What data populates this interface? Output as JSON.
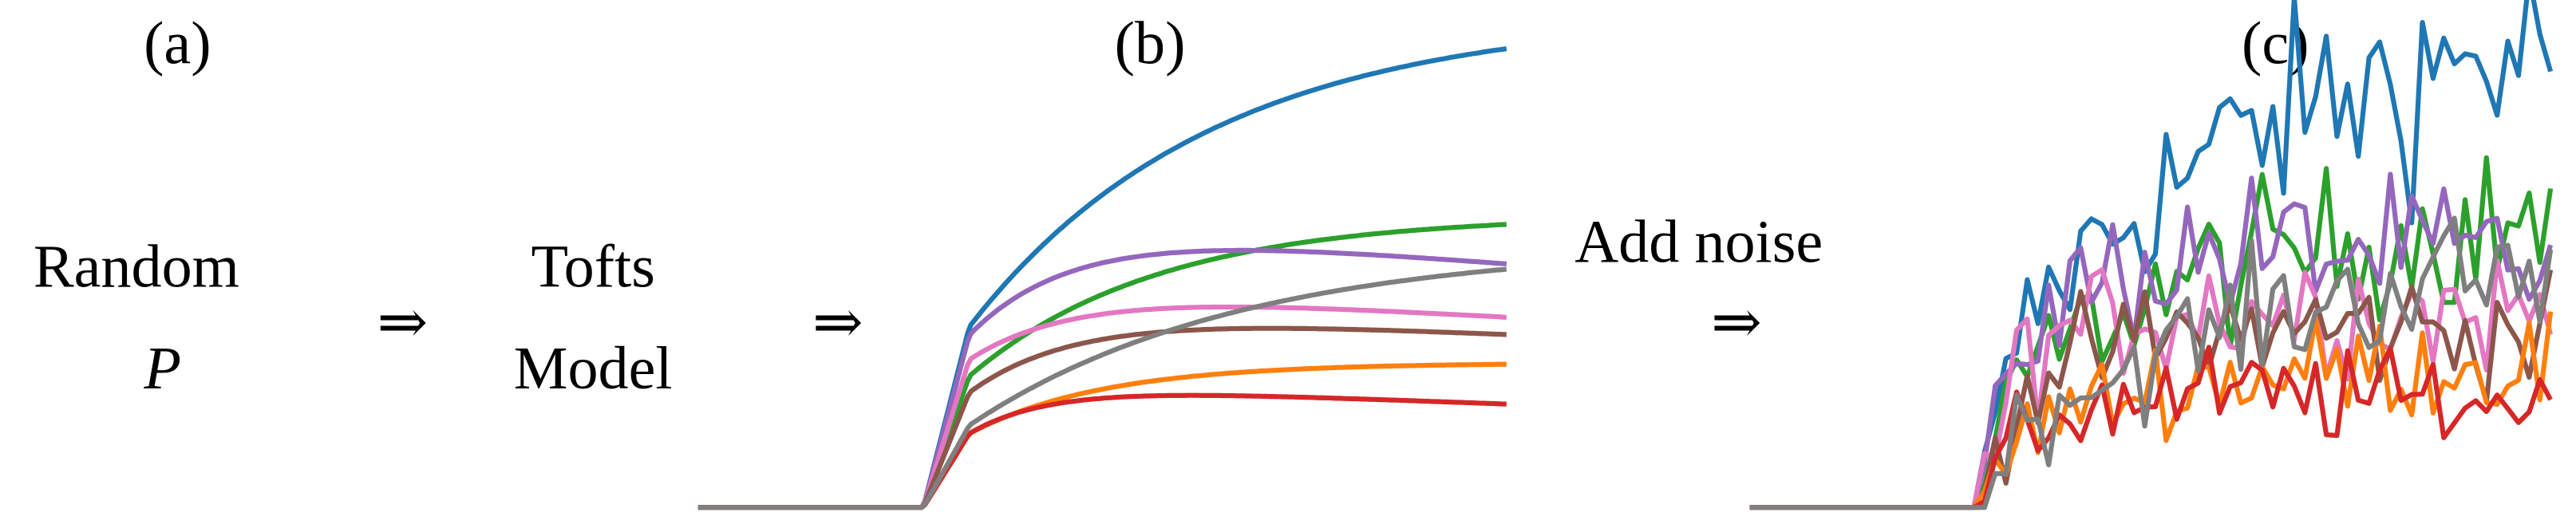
{
  "panels": {
    "a": {
      "label": "(a)",
      "lines": [
        "Random",
        "P"
      ]
    },
    "b": {
      "label": "(b)"
    },
    "c": {
      "label": "(c)"
    }
  },
  "steps": [
    {
      "arrow": "⇒",
      "lines": [
        "Tofts",
        "Model"
      ]
    },
    {
      "arrow": "⇒"
    },
    {
      "lines": [
        "Add noise"
      ],
      "arrow": "⇒"
    }
  ]
}
